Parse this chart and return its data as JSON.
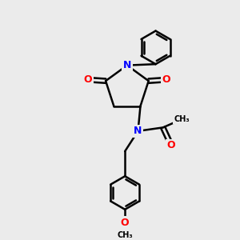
{
  "background_color": "#ebebeb",
  "bond_color": "#000000",
  "atom_colors": {
    "N": "#0000ff",
    "O": "#ff0000",
    "C": "#000000"
  },
  "bond_width": 1.8,
  "font_size_atoms": 9
}
